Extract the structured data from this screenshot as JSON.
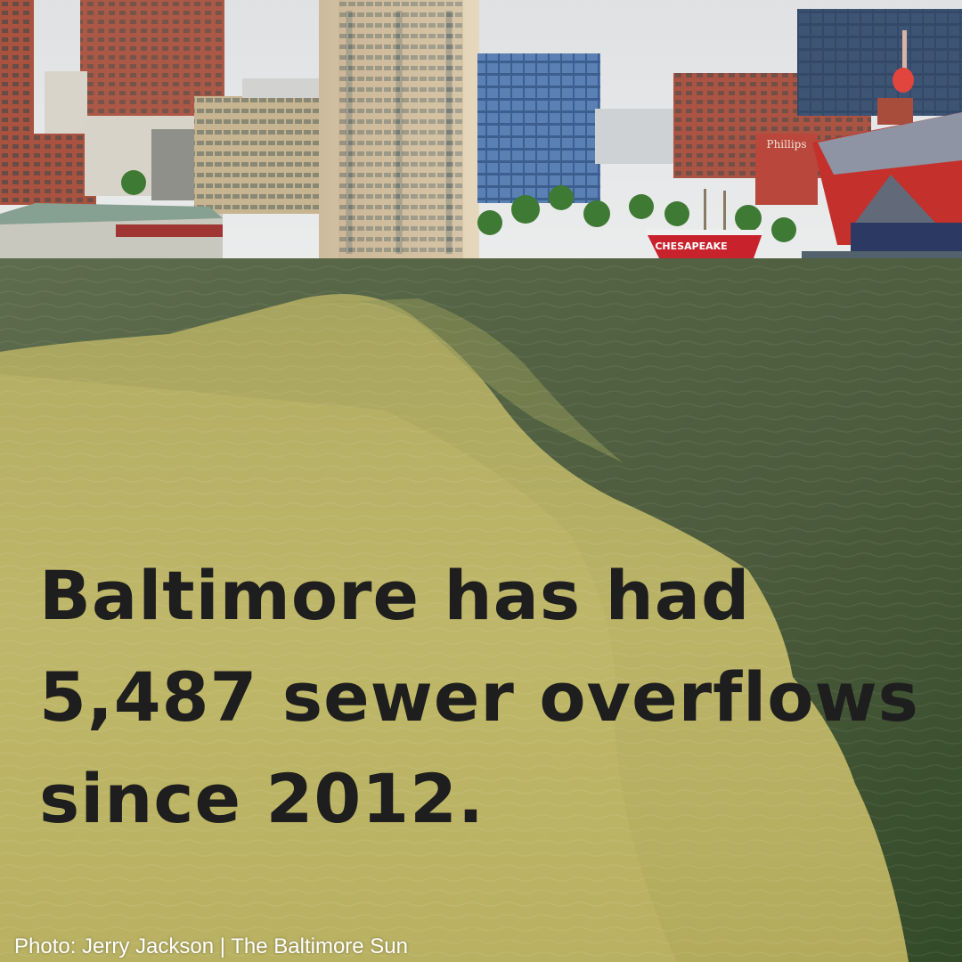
{
  "post": {
    "headline": "Baltimore has had 5,487 sewer overflows since 2012.",
    "credit": "Photo: Jerry Jackson | The Baltimore Sun"
  },
  "photo": {
    "ship_name": "CHESAPEAKE",
    "sign_text": "Phillips",
    "colors": {
      "sky": "#e4e5e6",
      "polluted_water": "#b8b065",
      "harbor_water": "#4c5e3e",
      "ship_hull": "#c8232d",
      "aquarium_red": "#c4302b"
    }
  }
}
